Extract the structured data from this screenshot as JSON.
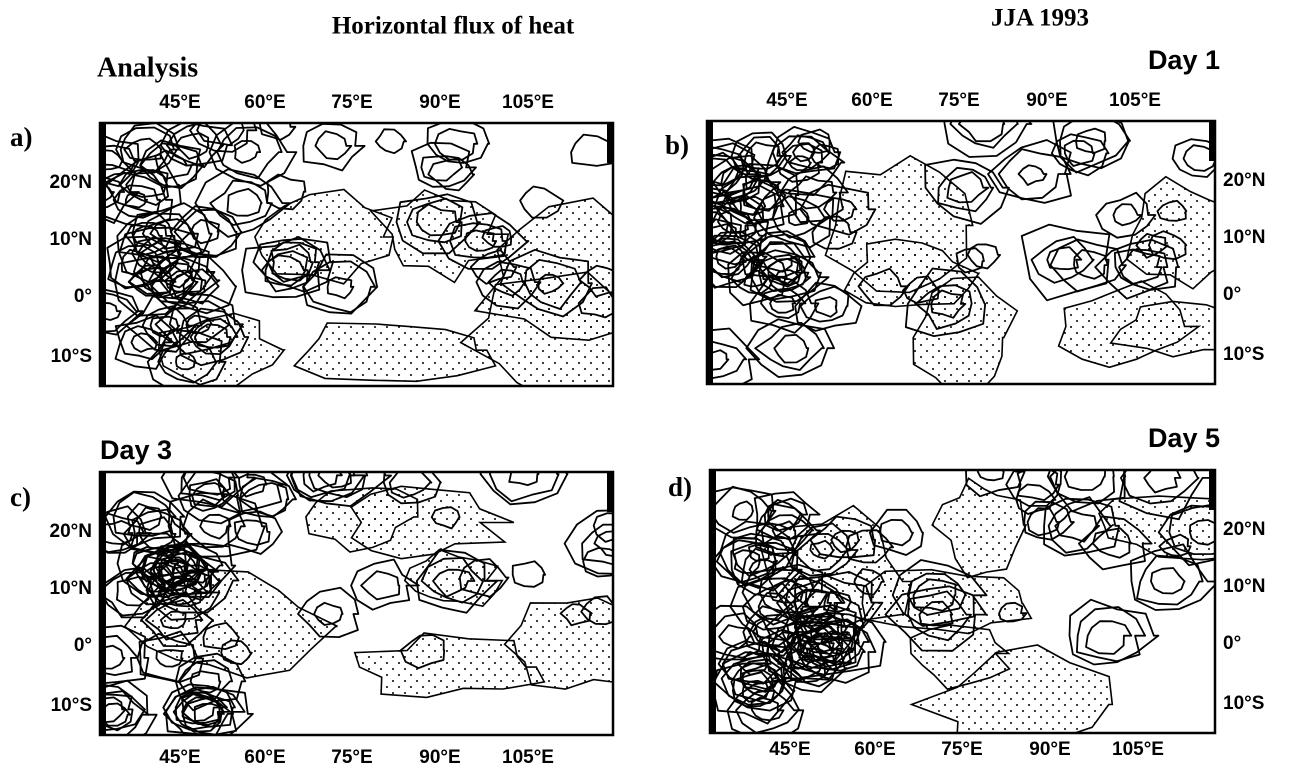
{
  "title": "Horizontal flux of heat",
  "period": "JJA 1993",
  "lon_labels": [
    "45°E",
    "60°E",
    "75°E",
    "90°E",
    "105°E"
  ],
  "lat_labels": [
    "20°N",
    "10°N",
    "0°",
    "10°S"
  ],
  "panels": [
    {
      "letter": "a)",
      "heading": "Analysis"
    },
    {
      "letter": "b)",
      "heading": "Day 1"
    },
    {
      "letter": "c)",
      "heading": "Day 3"
    },
    {
      "letter": "d)",
      "heading": "Day 5"
    }
  ]
}
